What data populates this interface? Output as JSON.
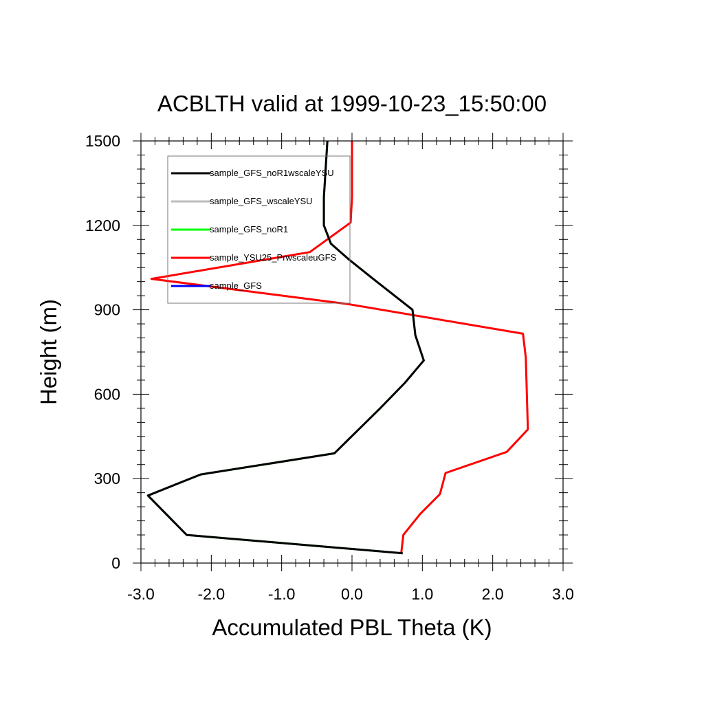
{
  "chart_data": {
    "type": "line",
    "title": "ACBLTH valid at 1999-10-23_15:50:00",
    "xlabel": "Accumulated PBL Theta (K)",
    "ylabel": "Height (m)",
    "xlim": [
      -3.0,
      3.0
    ],
    "ylim": [
      0,
      1500
    ],
    "xticks": [
      "-3.0",
      "-2.0",
      "-1.0",
      "0.0",
      "1.0",
      "2.0",
      "3.0"
    ],
    "yticks": [
      "0",
      "300",
      "600",
      "900",
      "1200",
      "1500"
    ],
    "legend_position": "top-left",
    "series": [
      {
        "name": "sample_GFS_noR1wscaleYSU",
        "color": "#000000",
        "points": [
          [
            0.72,
            35
          ],
          [
            -2.35,
            100
          ],
          [
            -2.9,
            240
          ],
          [
            -2.15,
            315
          ],
          [
            -0.25,
            390
          ],
          [
            0.4,
            550
          ],
          [
            0.75,
            640
          ],
          [
            1.02,
            720
          ],
          [
            0.9,
            810
          ],
          [
            0.86,
            900
          ],
          [
            0.3,
            1010
          ],
          [
            -0.05,
            1080
          ],
          [
            -0.3,
            1135
          ],
          [
            -0.4,
            1200
          ],
          [
            -0.4,
            1300
          ],
          [
            -0.35,
            1500
          ]
        ]
      },
      {
        "name": "sample_GFS_wscaleYSU",
        "color": "#bbbbbb",
        "points": [
          [
            0.72,
            35
          ],
          [
            -2.35,
            100
          ],
          [
            -2.9,
            240
          ],
          [
            -2.15,
            315
          ],
          [
            -0.25,
            390
          ],
          [
            0.4,
            550
          ],
          [
            0.75,
            640
          ],
          [
            1.02,
            720
          ],
          [
            0.9,
            810
          ],
          [
            0.86,
            900
          ],
          [
            0.3,
            1010
          ],
          [
            -0.05,
            1080
          ],
          [
            -0.3,
            1135
          ],
          [
            -0.4,
            1200
          ],
          [
            -0.4,
            1300
          ],
          [
            -0.35,
            1500
          ]
        ]
      },
      {
        "name": "sample_GFS_noR1",
        "color": "#00ff00",
        "points": [
          [
            0.72,
            35
          ],
          [
            -2.35,
            100
          ],
          [
            -2.9,
            240
          ],
          [
            -2.15,
            315
          ],
          [
            -0.25,
            390
          ],
          [
            0.4,
            550
          ],
          [
            0.75,
            640
          ],
          [
            1.02,
            720
          ],
          [
            0.9,
            810
          ],
          [
            0.86,
            900
          ],
          [
            0.3,
            1010
          ],
          [
            -0.05,
            1080
          ],
          [
            -0.3,
            1135
          ],
          [
            -0.4,
            1200
          ],
          [
            -0.4,
            1300
          ],
          [
            -0.35,
            1500
          ]
        ]
      },
      {
        "name": "sample_YSU25_PrwscaleuGFS",
        "color": "#ff0000",
        "points": [
          [
            0.7,
            35
          ],
          [
            0.73,
            100
          ],
          [
            0.97,
            175
          ],
          [
            1.25,
            245
          ],
          [
            1.33,
            320
          ],
          [
            2.2,
            395
          ],
          [
            2.5,
            475
          ],
          [
            2.47,
            730
          ],
          [
            2.43,
            815
          ],
          [
            -0.05,
            920
          ],
          [
            -2.85,
            1010
          ],
          [
            -0.6,
            1105
          ],
          [
            -0.02,
            1210
          ],
          [
            0.0,
            1300
          ],
          [
            0.0,
            1500
          ]
        ]
      },
      {
        "name": "sample_GFS",
        "color": "#0000ff",
        "points": []
      }
    ]
  }
}
